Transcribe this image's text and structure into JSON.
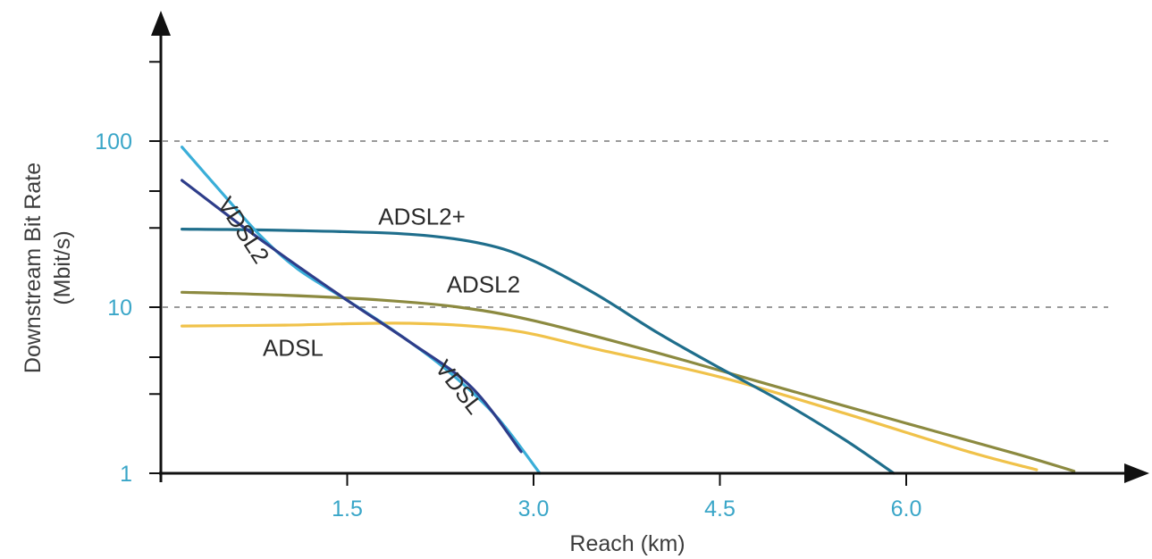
{
  "chart_data": {
    "type": "line",
    "title": "",
    "xlabel": "Reach (km)",
    "ylabel_line1": "Downstream Bit Rate",
    "ylabel_line2": "(Mbit/s)",
    "y_scale": "log",
    "xlim": [
      0,
      7.5
    ],
    "ylim": [
      1,
      400
    ],
    "x_ticks": [
      {
        "value": 1.5,
        "label": "1.5"
      },
      {
        "value": 3.0,
        "label": "3.0"
      },
      {
        "value": 4.5,
        "label": "4.5"
      },
      {
        "value": 6.0,
        "label": "6.0"
      }
    ],
    "y_tick_labels": [
      {
        "value": 1,
        "label": "1"
      },
      {
        "value": 10,
        "label": "10"
      },
      {
        "value": 100,
        "label": "100"
      }
    ],
    "y_minor_ticks": [
      3,
      5,
      30,
      50,
      300
    ],
    "reference_lines": [
      10,
      100
    ],
    "colors": {
      "axis": "#111111",
      "tick_label": "#3aa6c8",
      "grid": "#9a9a9a"
    },
    "series": [
      {
        "name": "ADSL",
        "color": "#f0c24a",
        "label_value": {
          "x": 0.82,
          "y": 5.1
        },
        "points": [
          [
            0.17,
            7.7
          ],
          [
            1.0,
            7.8
          ],
          [
            2.0,
            8.0
          ],
          [
            2.8,
            7.3
          ],
          [
            3.5,
            5.6
          ],
          [
            4.5,
            3.8
          ],
          [
            5.5,
            2.3
          ],
          [
            6.5,
            1.35
          ],
          [
            7.05,
            1.05
          ]
        ]
      },
      {
        "name": "ADSL2",
        "color": "#8c8a40",
        "label_value": {
          "x": 2.3,
          "y": 12.3
        },
        "points": [
          [
            0.17,
            12.3
          ],
          [
            1.0,
            11.8
          ],
          [
            1.8,
            11.0
          ],
          [
            2.4,
            10.0
          ],
          [
            3.0,
            8.3
          ],
          [
            4.0,
            5.3
          ],
          [
            5.0,
            3.25
          ],
          [
            6.0,
            2.0
          ],
          [
            6.9,
            1.3
          ],
          [
            7.35,
            1.03
          ]
        ]
      },
      {
        "name": "ADSL2+",
        "color": "#1f6e8c",
        "label_value": {
          "x": 1.75,
          "y": 31.5
        },
        "points": [
          [
            0.17,
            29.5
          ],
          [
            1.0,
            29.0
          ],
          [
            2.0,
            27.5
          ],
          [
            2.6,
            24.0
          ],
          [
            3.0,
            19.0
          ],
          [
            3.5,
            12.0
          ],
          [
            4.0,
            7.0
          ],
          [
            4.5,
            4.3
          ],
          [
            5.0,
            2.7
          ],
          [
            5.5,
            1.6
          ],
          [
            5.9,
            1.0
          ]
        ]
      },
      {
        "name": "VDSL2",
        "color": "#3aaed8",
        "label_value": {
          "x": 0.45,
          "y": 42.0
        },
        "points": [
          [
            0.17,
            92.0
          ],
          [
            0.5,
            48.0
          ],
          [
            0.8,
            27.0
          ],
          [
            1.1,
            17.0
          ],
          [
            1.5,
            11.0
          ],
          [
            1.9,
            7.0
          ],
          [
            2.3,
            4.2
          ],
          [
            2.7,
            2.2
          ],
          [
            3.05,
            1.0
          ]
        ]
      },
      {
        "name": "VDSL",
        "color": "#2e3d8a",
        "label_value": {
          "x": 2.2,
          "y": 4.3
        },
        "points": [
          [
            0.17,
            58.0
          ],
          [
            0.6,
            33.0
          ],
          [
            1.0,
            20.0
          ],
          [
            1.5,
            11.0
          ],
          [
            2.0,
            6.2
          ],
          [
            2.5,
            3.3
          ],
          [
            2.9,
            1.35
          ]
        ]
      }
    ]
  }
}
